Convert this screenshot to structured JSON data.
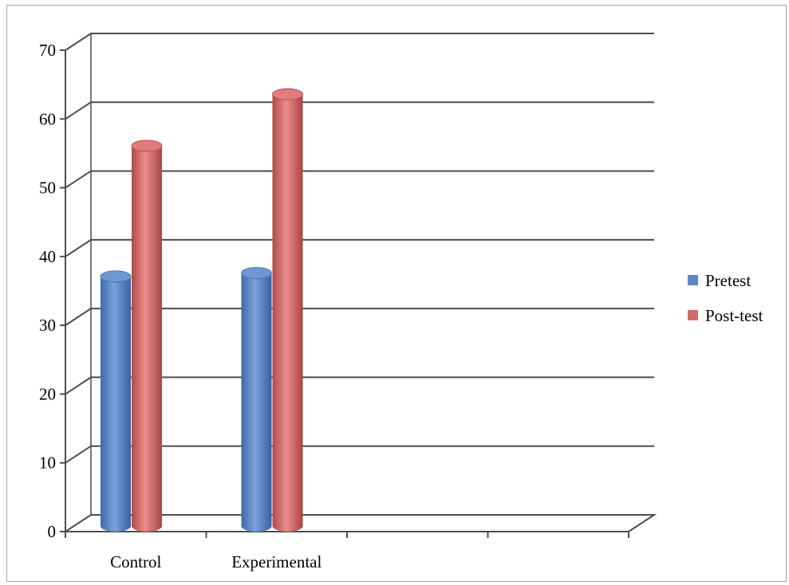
{
  "chart_data": {
    "type": "bar",
    "style": "3d-cylinder",
    "categories": [
      "Control",
      "Experimental"
    ],
    "series": [
      {
        "name": "Pretest",
        "values": [
          36,
          36.5
        ],
        "color": "#5b86c8"
      },
      {
        "name": "Post-test",
        "values": [
          55,
          62.5
        ],
        "color": "#d46a6a"
      }
    ],
    "ylim": [
      0,
      70
    ],
    "yticks": [
      "0",
      "10",
      "20",
      "30",
      "40",
      "50",
      "60",
      "70"
    ],
    "grid": true,
    "legend": "right"
  }
}
